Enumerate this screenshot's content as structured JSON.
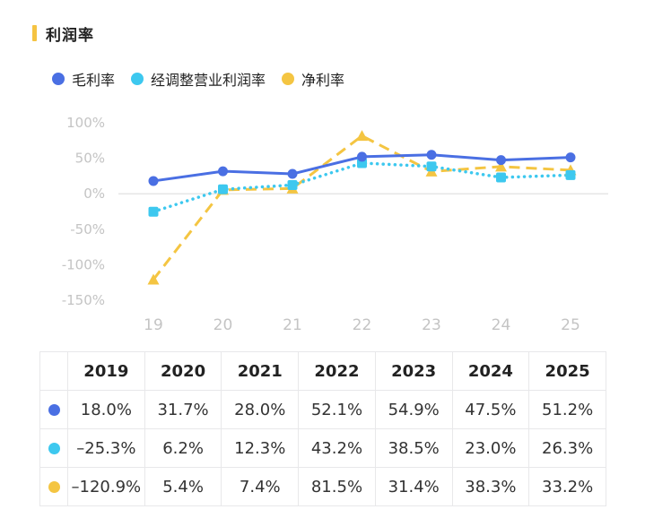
{
  "header": {
    "title": "利润率"
  },
  "colors": {
    "title_accent": "#f5c342"
  },
  "chart_data": {
    "type": "line",
    "categories": [
      "19",
      "20",
      "21",
      "22",
      "23",
      "24",
      "25"
    ],
    "y_tick_labels": [
      "100%",
      "50%",
      "0%",
      "-50%",
      "-100%",
      "-150%"
    ],
    "ylim": [
      -150,
      100
    ],
    "y_ticks": [
      100,
      50,
      0,
      -50,
      -100,
      -150
    ],
    "series": [
      {
        "name": "毛利率",
        "color": "#4a6fe3",
        "style": "solid",
        "marker": "circle",
        "values": [
          18.0,
          31.7,
          28.0,
          52.1,
          54.9,
          47.5,
          51.2
        ]
      },
      {
        "name": "经调整营业利润率",
        "color": "#3dc8ef",
        "style": "dotted",
        "marker": "square",
        "values": [
          -25.3,
          6.2,
          12.3,
          43.2,
          38.5,
          23.0,
          26.3
        ]
      },
      {
        "name": "净利率",
        "color": "#f4c542",
        "style": "dashed",
        "marker": "triangle",
        "values": [
          -120.9,
          5.4,
          7.4,
          81.5,
          31.4,
          38.3,
          33.2
        ]
      }
    ]
  },
  "table": {
    "years": [
      "2019",
      "2020",
      "2021",
      "2022",
      "2023",
      "2024",
      "2025"
    ],
    "rows": [
      {
        "color": "#4a6fe3",
        "cells": [
          "18.0%",
          "31.7%",
          "28.0%",
          "52.1%",
          "54.9%",
          "47.5%",
          "51.2%"
        ]
      },
      {
        "color": "#3dc8ef",
        "cells": [
          "–25.3%",
          "6.2%",
          "12.3%",
          "43.2%",
          "38.5%",
          "23.0%",
          "26.3%"
        ]
      },
      {
        "color": "#f4c542",
        "cells": [
          "–120.9%",
          "5.4%",
          "7.4%",
          "81.5%",
          "31.4%",
          "38.3%",
          "33.2%"
        ]
      }
    ]
  }
}
